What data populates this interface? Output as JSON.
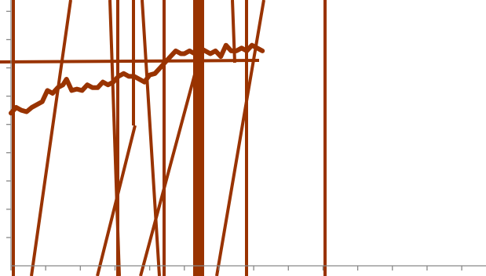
{
  "chart_data": {
    "type": "line",
    "title": "",
    "xlabel": "",
    "ylabel": "",
    "xlim": [
      0,
      13.7
    ],
    "ylim": [
      0,
      9.4
    ],
    "x_ticks": [
      0,
      1,
      2,
      3,
      4,
      5,
      6,
      7,
      8,
      9,
      10,
      11,
      12,
      13
    ],
    "y_ticks": [
      1,
      2,
      3,
      4,
      5,
      6,
      7,
      8,
      9
    ],
    "grid": false,
    "legend": "none",
    "colors": {
      "series": "#993300",
      "axis": "#888888",
      "background": "#ffffff"
    },
    "series": [
      {
        "color": "#993300",
        "x": [
          0,
          0.15,
          0.3,
          0.45,
          0.6,
          0.75,
          0.9,
          1.05,
          1.2,
          1.35,
          1.5,
          1.6,
          1.75,
          1.9,
          2.05,
          2.2,
          2.35,
          2.5,
          2.65,
          2.8,
          2.95,
          3.1,
          3.25,
          3.4,
          3.55,
          3.7,
          3.85,
          4.0,
          4.15,
          4.3,
          4.45,
          4.6,
          4.75,
          4.9,
          5.0,
          5.15,
          5.3,
          5.45,
          5.6,
          5.75,
          5.9,
          6.05,
          6.2,
          6.35,
          6.5,
          6.65,
          6.8,
          6.95,
          7.1,
          7.25
        ],
        "y": [
          5.4,
          5.6,
          5.5,
          5.45,
          5.6,
          5.7,
          5.8,
          6.2,
          6.1,
          6.3,
          6.4,
          6.6,
          6.2,
          6.25,
          6.2,
          6.4,
          6.3,
          6.3,
          6.5,
          6.4,
          6.5,
          6.7,
          6.8,
          6.7,
          6.7,
          6.6,
          6.5,
          6.75,
          6.8,
          7.0,
          7.2,
          7.4,
          7.6,
          7.5,
          7.5,
          7.6,
          7.5,
          7.7,
          7.6,
          7.5,
          7.6,
          7.4,
          7.8,
          7.6,
          7.6,
          7.7,
          7.6,
          7.8,
          7.7,
          7.6
        ]
      }
    ]
  }
}
